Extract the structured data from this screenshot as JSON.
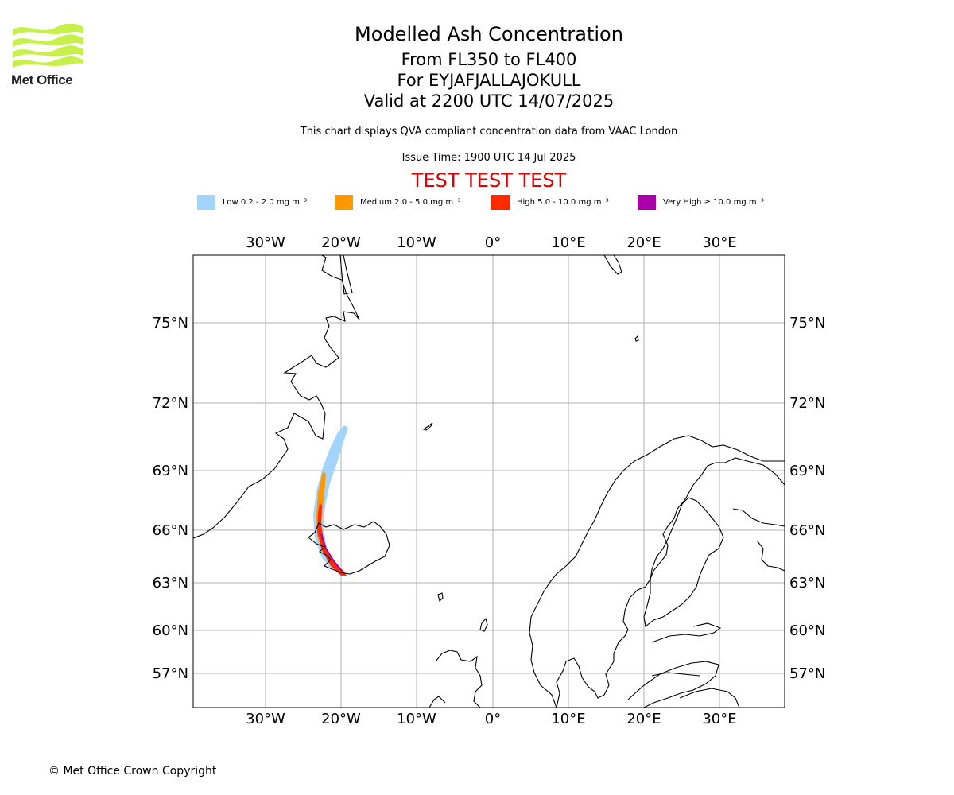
{
  "logo": {
    "text": "Met Office"
  },
  "titles": {
    "main": "Modelled Ash Concentration",
    "levels": "From FL350 to FL400",
    "volcano": "For EYJAFJALLAJOKULL",
    "valid": "Valid at 2200 UTC 14/07/2025",
    "note": "This chart displays QVA compliant concentration data from VAAC London",
    "issue": "Issue Time: 1900 UTC 14 Jul 2025",
    "test": "TEST TEST TEST"
  },
  "legend": [
    {
      "label": "Low 0.2 - 2.0 mg m⁻³",
      "color": "#a3d4fb"
    },
    {
      "label": "Medium 2.0 - 5.0 mg m⁻³",
      "color": "#ff9800"
    },
    {
      "label": "High 5.0 - 10.0 mg m⁻³",
      "color": "#ff2a00"
    },
    {
      "label": "Very High ≥ 10.0 mg m⁻³",
      "color": "#aa00aa"
    }
  ],
  "map": {
    "lon_ticks": [
      "30°W",
      "20°W",
      "10°W",
      "0°",
      "10°E",
      "20°E",
      "30°E"
    ],
    "lat_ticks": [
      "75°N",
      "72°N",
      "69°N",
      "66°N",
      "63°N",
      "60°N",
      "57°N"
    ],
    "gridlines": true,
    "ash_plume_levels": [
      "low",
      "medium",
      "high",
      "very_high"
    ]
  },
  "footer": {
    "copyright": "© Met Office Crown Copyright"
  }
}
